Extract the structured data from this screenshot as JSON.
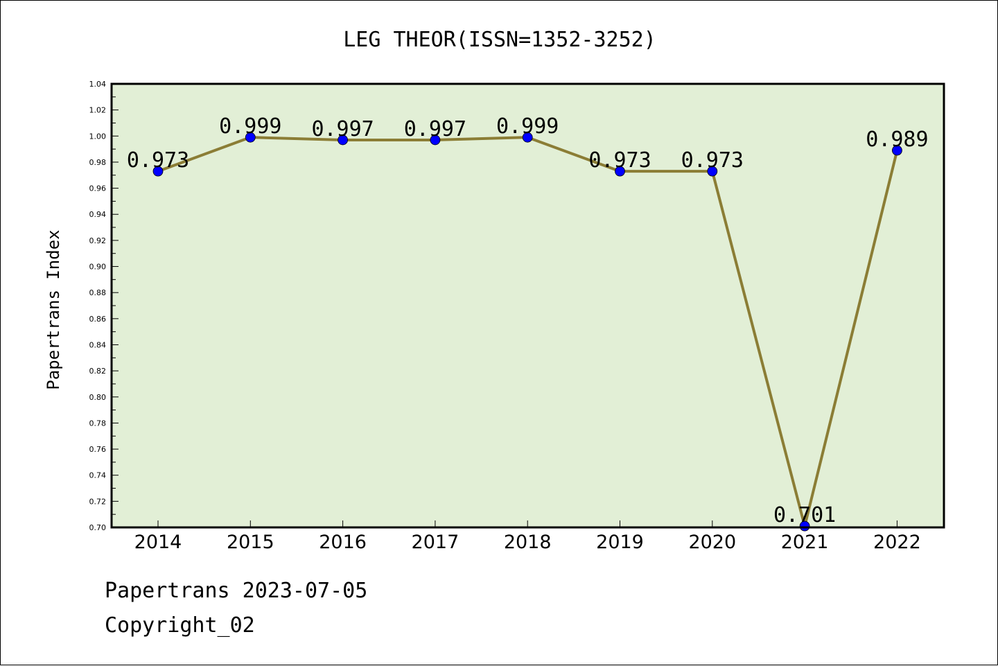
{
  "chart_data": {
    "type": "line",
    "title": "LEG THEOR(ISSN=1352-3252)",
    "xlabel": "",
    "ylabel": "Papertrans Index",
    "categories": [
      "2014",
      "2015",
      "2016",
      "2017",
      "2018",
      "2019",
      "2020",
      "2021",
      "2022"
    ],
    "series": [
      {
        "values": [
          0.973,
          0.999,
          0.997,
          0.997,
          0.999,
          0.973,
          0.973,
          0.701,
          0.989
        ]
      }
    ],
    "data_labels": [
      "0.973",
      "0.999",
      "0.997",
      "0.997",
      "0.999",
      "0.973",
      "0.973",
      "0.701",
      "0.989"
    ],
    "ylim": [
      0.7,
      1.04
    ],
    "yticks": [
      "0.70",
      "0.72",
      "0.74",
      "0.76",
      "0.78",
      "0.80",
      "0.82",
      "0.84",
      "0.86",
      "0.88",
      "0.90",
      "0.92",
      "0.94",
      "0.96",
      "0.98",
      "1.00",
      "1.02",
      "1.04"
    ],
    "grid": false,
    "colors": {
      "plot_background": "#e2efd6",
      "line": "#8b7d35",
      "marker": "#0000ff"
    }
  },
  "footer": {
    "line1": "Papertrans 2023-07-05",
    "line2": "Copyright_02"
  }
}
